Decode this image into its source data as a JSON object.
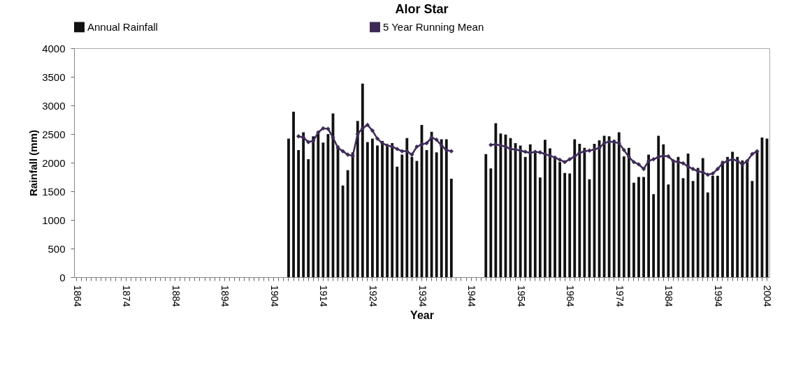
{
  "chart_data": {
    "type": "bar",
    "title": "Alor Star",
    "xlabel": "Year",
    "ylabel": "Rainfall (mm)",
    "categories": [
      "1864",
      null,
      null,
      null,
      null,
      null,
      null,
      null,
      null,
      null,
      "1874",
      null,
      null,
      null,
      null,
      null,
      null,
      null,
      null,
      null,
      "1884",
      null,
      null,
      null,
      null,
      null,
      null,
      null,
      null,
      null,
      "1894",
      null,
      null,
      null,
      null,
      null,
      null,
      null,
      null,
      null,
      "1904",
      null,
      null,
      null,
      null,
      null,
      null,
      null,
      null,
      null,
      "1914",
      null,
      null,
      null,
      null,
      null,
      null,
      null,
      null,
      null,
      "1924",
      null,
      null,
      null,
      null,
      null,
      null,
      null,
      null,
      null,
      "1934",
      null,
      null,
      null,
      null,
      null,
      null,
      null,
      null,
      null,
      "1944",
      null,
      null,
      null,
      null,
      null,
      null,
      null,
      null,
      null,
      "1954",
      null,
      null,
      null,
      null,
      null,
      null,
      null,
      null,
      null,
      "1964",
      null,
      null,
      null,
      null,
      null,
      null,
      null,
      null,
      null,
      "1974",
      null,
      null,
      null,
      null,
      null,
      null,
      null,
      null,
      null,
      "1984",
      null,
      null,
      null,
      null,
      null,
      null,
      null,
      null,
      null,
      "1994",
      null,
      null,
      null,
      null,
      null,
      null,
      null,
      null,
      null,
      "2004"
    ],
    "series": [
      {
        "name": "Annual Rainfall",
        "color": "#111111",
        "values": [
          null,
          null,
          null,
          null,
          null,
          null,
          null,
          null,
          null,
          null,
          null,
          null,
          null,
          null,
          null,
          null,
          null,
          null,
          null,
          null,
          null,
          null,
          null,
          null,
          null,
          null,
          null,
          null,
          null,
          null,
          null,
          null,
          null,
          null,
          null,
          null,
          null,
          null,
          null,
          null,
          null,
          null,
          null,
          2420,
          2890,
          2220,
          2530,
          2060,
          2460,
          2510,
          2350,
          2500,
          2860,
          2300,
          1600,
          1870,
          2180,
          2730,
          3380,
          2360,
          2420,
          2300,
          2380,
          2280,
          2340,
          1930,
          2140,
          2430,
          2100,
          2030,
          2660,
          2220,
          2540,
          2180,
          2410,
          2410,
          1720,
          null,
          null,
          null,
          null,
          null,
          null,
          2150,
          1900,
          2690,
          2510,
          2490,
          2430,
          2340,
          2300,
          2100,
          2320,
          2200,
          1740,
          2400,
          2250,
          2100,
          2010,
          1820,
          1810,
          2410,
          2330,
          2260,
          1710,
          2330,
          2390,
          2470,
          2460,
          2400,
          2530,
          2110,
          2260,
          1650,
          1750,
          1750,
          2140,
          1450,
          2470,
          2320,
          1620,
          2030,
          2100,
          1730,
          2160,
          1680,
          1910,
          2080,
          1480,
          1770,
          1770,
          2030,
          2100,
          2190,
          2100,
          2040,
          2010,
          1680,
          2210,
          2440,
          2420
        ]
      },
      {
        "name": "5 Year Running Mean",
        "type": "line",
        "color": "#3d2b56",
        "marker": "diamond",
        "values": [
          null,
          null,
          null,
          null,
          null,
          null,
          null,
          null,
          null,
          null,
          null,
          null,
          null,
          null,
          null,
          null,
          null,
          null,
          null,
          null,
          null,
          null,
          null,
          null,
          null,
          null,
          null,
          null,
          null,
          null,
          null,
          null,
          null,
          null,
          null,
          null,
          null,
          null,
          null,
          null,
          null,
          null,
          null,
          null,
          null,
          2460,
          2440,
          2360,
          2380,
          2530,
          2600,
          2590,
          2440,
          2260,
          2200,
          2140,
          2120,
          2500,
          2600,
          2660,
          2560,
          2420,
          2340,
          2300,
          2280,
          2240,
          2200,
          2200,
          2140,
          2280,
          2320,
          2340,
          2440,
          2400,
          2300,
          2220,
          2200,
          null,
          null,
          null,
          null,
          null,
          null,
          null,
          2310,
          2320,
          2300,
          2280,
          2240,
          2230,
          2210,
          2190,
          2170,
          2190,
          2180,
          2150,
          2120,
          2090,
          2050,
          2010,
          2060,
          2110,
          2170,
          2200,
          2210,
          2230,
          2260,
          2340,
          2370,
          2360,
          2340,
          2220,
          2100,
          2010,
          1970,
          1890,
          2030,
          2060,
          2100,
          2120,
          2110,
          2030,
          2010,
          1990,
          1930,
          1890,
          1850,
          1830,
          1790,
          1810,
          1890,
          1990,
          2030,
          2060,
          2030,
          1970,
          2030,
          2150,
          2200,
          null,
          null
        ]
      }
    ],
    "ylim": [
      0,
      4000
    ],
    "yticks": [
      0,
      500,
      1000,
      1500,
      2000,
      2500,
      3000,
      3500,
      4000
    ],
    "legend": "top"
  }
}
